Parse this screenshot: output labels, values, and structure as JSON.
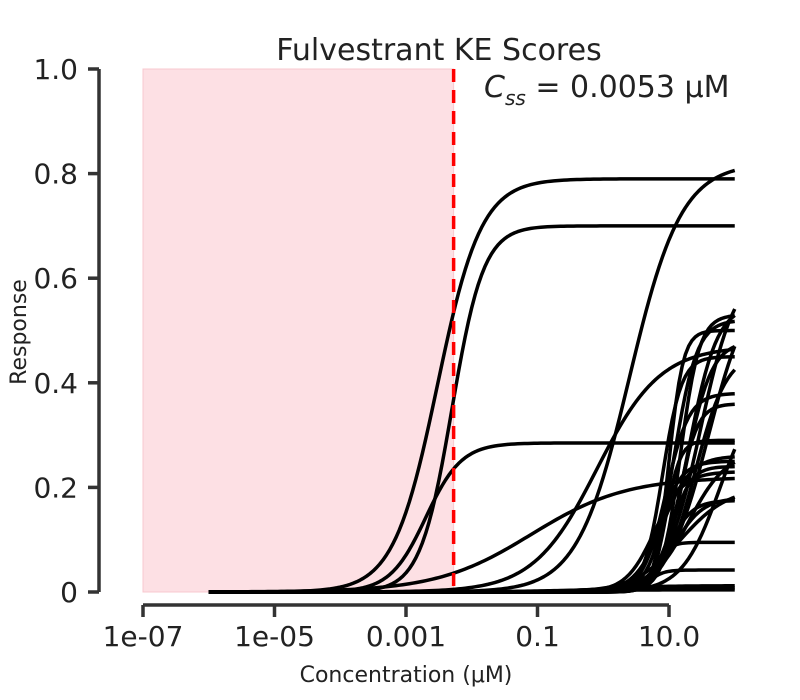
{
  "chart_data": {
    "type": "line",
    "title": "Fulvestrant KE Scores",
    "annotation": {
      "css_symbol": "C",
      "css_subscript": "ss",
      "css_text": " =  0.0053 μM"
    },
    "xlabel": "Concentration (μM)",
    "ylabel": "Response",
    "x_scale": "log",
    "xlim": [
      1e-07,
      100
    ],
    "ylim": [
      0,
      1.0
    ],
    "x_ticks": [
      1e-07,
      1e-05,
      0.001,
      0.1,
      10.0
    ],
    "x_tick_labels": [
      "1e-07",
      "1e-05",
      "0.001",
      "0.1",
      "10.0"
    ],
    "y_ticks": [
      0,
      0.2,
      0.4,
      0.6,
      0.8,
      1.0
    ],
    "y_tick_labels": [
      "0",
      "0.2",
      "0.4",
      "0.6",
      "0.8",
      "1.0"
    ],
    "shaded_region": {
      "x": [
        1e-07,
        0.0053
      ],
      "y": [
        0,
        1.0
      ],
      "color": "#fde0e4"
    },
    "vline": {
      "x": 0.0053,
      "color": "#ff0000",
      "style": "dashed"
    },
    "line_color": "#000000",
    "grid": false,
    "curve_model": "hill",
    "x_range": [
      1e-06,
      100
    ],
    "curves": [
      {
        "top": 0.79,
        "ec50": 0.003,
        "hill": 1.3
      },
      {
        "top": 0.7,
        "ec50": 0.005,
        "hill": 1.8
      },
      {
        "top": 0.82,
        "ec50": 2.5,
        "hill": 1.1
      },
      {
        "top": 0.285,
        "ec50": 0.002,
        "hill": 1.6
      },
      {
        "top": 0.47,
        "ec50": 0.8,
        "hill": 0.9
      },
      {
        "top": 0.22,
        "ec50": 0.08,
        "hill": 0.6
      },
      {
        "top": 0.62,
        "ec50": 30,
        "hill": 1.6
      },
      {
        "top": 0.6,
        "ec50": 40,
        "hill": 1.4
      },
      {
        "top": 0.55,
        "ec50": 20,
        "hill": 2.0
      },
      {
        "top": 0.53,
        "ec50": 15,
        "hill": 3.0
      },
      {
        "top": 0.52,
        "ec50": 12,
        "hill": 2.5
      },
      {
        "top": 0.5,
        "ec50": 10,
        "hill": 4.0
      },
      {
        "top": 0.48,
        "ec50": 18,
        "hill": 2.2
      },
      {
        "top": 0.46,
        "ec50": 25,
        "hill": 1.8
      },
      {
        "top": 0.45,
        "ec50": 8,
        "hill": 3.0
      },
      {
        "top": 0.38,
        "ec50": 9,
        "hill": 2.5
      },
      {
        "top": 0.36,
        "ec50": 14,
        "hill": 3.0
      },
      {
        "top": 0.4,
        "ec50": 60,
        "hill": 1.5
      },
      {
        "top": 0.29,
        "ec50": 9,
        "hill": 4.0
      },
      {
        "top": 0.27,
        "ec50": 20,
        "hill": 1.5
      },
      {
        "top": 0.26,
        "ec50": 8,
        "hill": 2.0
      },
      {
        "top": 0.25,
        "ec50": 7,
        "hill": 2.5
      },
      {
        "top": 0.24,
        "ec50": 11,
        "hill": 3.0
      },
      {
        "top": 0.23,
        "ec50": 6,
        "hill": 2.0
      },
      {
        "top": 0.2,
        "ec50": 15,
        "hill": 1.2
      },
      {
        "top": 0.18,
        "ec50": 12,
        "hill": 2.0
      },
      {
        "top": 0.175,
        "ec50": 10,
        "hill": 2.5
      },
      {
        "top": 0.095,
        "ec50": 6,
        "hill": 4.0
      },
      {
        "top": 0.042,
        "ec50": 5,
        "hill": 4.0
      },
      {
        "top": 0.012,
        "ec50": 1,
        "hill": 1.0
      },
      {
        "top": 0.008,
        "ec50": 0.5,
        "hill": 1.0
      },
      {
        "top": 0.004,
        "ec50": 0.1,
        "hill": 1.0
      }
    ]
  }
}
